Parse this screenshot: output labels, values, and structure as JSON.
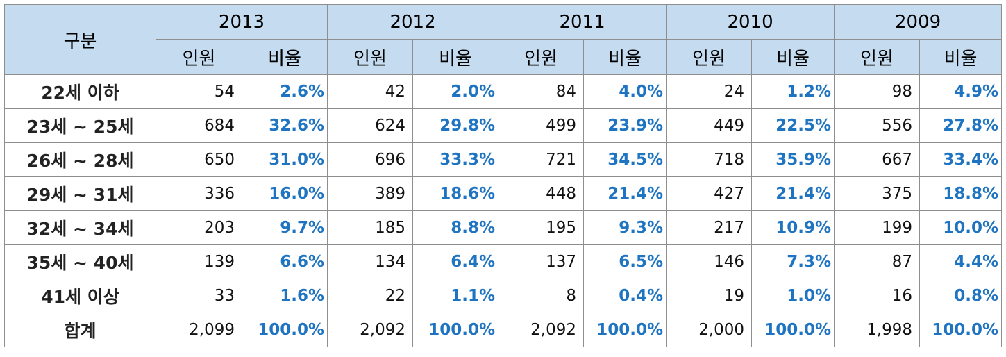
{
  "table": {
    "corner_label": "구분",
    "years": [
      "2013",
      "2012",
      "2011",
      "2010",
      "2009"
    ],
    "sub_headers": {
      "count": "인원",
      "ratio": "비율"
    },
    "accent_color": "#1f74c2",
    "header_bg": "#c5dbf0",
    "rows": [
      {
        "label": "22세 이하",
        "cells": [
          [
            "54",
            "2.6%"
          ],
          [
            "42",
            "2.0%"
          ],
          [
            "84",
            "4.0%"
          ],
          [
            "24",
            "1.2%"
          ],
          [
            "98",
            "4.9%"
          ]
        ]
      },
      {
        "label": "23세 ~ 25세",
        "cells": [
          [
            "684",
            "32.6%"
          ],
          [
            "624",
            "29.8%"
          ],
          [
            "499",
            "23.9%"
          ],
          [
            "449",
            "22.5%"
          ],
          [
            "556",
            "27.8%"
          ]
        ]
      },
      {
        "label": "26세 ~ 28세",
        "cells": [
          [
            "650",
            "31.0%"
          ],
          [
            "696",
            "33.3%"
          ],
          [
            "721",
            "34.5%"
          ],
          [
            "718",
            "35.9%"
          ],
          [
            "667",
            "33.4%"
          ]
        ]
      },
      {
        "label": "29세 ~ 31세",
        "cells": [
          [
            "336",
            "16.0%"
          ],
          [
            "389",
            "18.6%"
          ],
          [
            "448",
            "21.4%"
          ],
          [
            "427",
            "21.4%"
          ],
          [
            "375",
            "18.8%"
          ]
        ]
      },
      {
        "label": "32세 ~ 34세",
        "cells": [
          [
            "203",
            "9.7%"
          ],
          [
            "185",
            "8.8%"
          ],
          [
            "195",
            "9.3%"
          ],
          [
            "217",
            "10.9%"
          ],
          [
            "199",
            "10.0%"
          ]
        ]
      },
      {
        "label": "35세 ~ 40세",
        "cells": [
          [
            "139",
            "6.6%"
          ],
          [
            "134",
            "6.4%"
          ],
          [
            "137",
            "6.5%"
          ],
          [
            "146",
            "7.3%"
          ],
          [
            "87",
            "4.4%"
          ]
        ]
      },
      {
        "label": "41세 이상",
        "cells": [
          [
            "33",
            "1.6%"
          ],
          [
            "22",
            "1.1%"
          ],
          [
            "8",
            "0.4%"
          ],
          [
            "19",
            "1.0%"
          ],
          [
            "16",
            "0.8%"
          ]
        ]
      },
      {
        "label": "합계",
        "cells": [
          [
            "2,099",
            "100.0%"
          ],
          [
            "2,092",
            "100.0%"
          ],
          [
            "2,092",
            "100.0%"
          ],
          [
            "2,000",
            "100.0%"
          ],
          [
            "1,998",
            "100.0%"
          ]
        ]
      }
    ]
  }
}
